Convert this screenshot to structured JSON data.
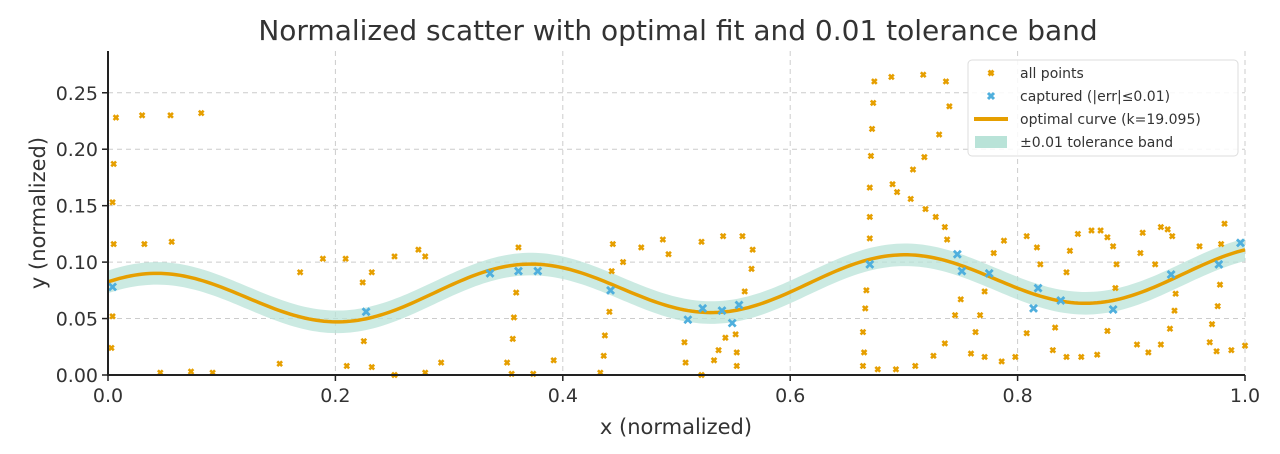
{
  "chart_data": {
    "type": "scatter",
    "title": "Normalized scatter with optimal fit and 0.01 tolerance band",
    "xlabel": "x (normalized)",
    "ylabel": "y (normalized)",
    "xlim": [
      0,
      1
    ],
    "ylim": [
      0,
      0.287
    ],
    "xticks": [
      0,
      0.2,
      0.4,
      0.6,
      0.8,
      1.0
    ],
    "xtick_labels": [
      "0.0",
      "0.2",
      "0.4",
      "0.6",
      "0.8",
      "1.0"
    ],
    "yticks": [
      0,
      0.05,
      0.1,
      0.15,
      0.2,
      0.25
    ],
    "ytick_labels": [
      "0.00",
      "0.05",
      "0.10",
      "0.15",
      "0.20",
      "0.25"
    ],
    "grid": true,
    "legend_position": "top-right",
    "legend": [
      {
        "label": "all points",
        "kind": "marker",
        "color": "#E69F00"
      },
      {
        "label": "captured (|err|≤0.01)",
        "kind": "marker",
        "color": "#4FAFDD"
      },
      {
        "label": "optimal curve (k=19.095)",
        "kind": "line",
        "color": "#E69F00"
      },
      {
        "label": "±0.01 tolerance band",
        "kind": "band",
        "color": "#B9E3D8"
      }
    ],
    "curve": {
      "k": 19.095,
      "intercept": 0.0655,
      "slope": 0.025,
      "amplitude": 0.0235,
      "phase": 0.807,
      "tolerance": 0.01
    },
    "colors": {
      "all": "#E69F00",
      "captured": "#4FAFDD",
      "curve": "#E69F00",
      "band": "#B9E3D8"
    },
    "all_points": [
      [
        0.007,
        0.228
      ],
      [
        0.03,
        0.23
      ],
      [
        0.055,
        0.23
      ],
      [
        0.082,
        0.232
      ],
      [
        0.005,
        0.187
      ],
      [
        0.004,
        0.153
      ],
      [
        0.005,
        0.116
      ],
      [
        0.032,
        0.116
      ],
      [
        0.056,
        0.118
      ],
      [
        0.004,
        0.052
      ],
      [
        0.003,
        0.024
      ],
      [
        0.046,
        0.002
      ],
      [
        0.073,
        0.003
      ],
      [
        0.092,
        0.002
      ],
      [
        0.151,
        0.01
      ],
      [
        0.169,
        0.091
      ],
      [
        0.189,
        0.103
      ],
      [
        0.209,
        0.103
      ],
      [
        0.21,
        0.008
      ],
      [
        0.224,
        0.082
      ],
      [
        0.232,
        0.091
      ],
      [
        0.225,
        0.03
      ],
      [
        0.232,
        0.007
      ],
      [
        0.252,
        0.105
      ],
      [
        0.252,
        0.0
      ],
      [
        0.273,
        0.111
      ],
      [
        0.279,
        0.105
      ],
      [
        0.279,
        0.002
      ],
      [
        0.293,
        0.011
      ],
      [
        0.361,
        0.113
      ],
      [
        0.359,
        0.073
      ],
      [
        0.357,
        0.051
      ],
      [
        0.356,
        0.032
      ],
      [
        0.351,
        0.011
      ],
      [
        0.355,
        0.001
      ],
      [
        0.374,
        0.001
      ],
      [
        0.392,
        0.013
      ],
      [
        0.444,
        0.116
      ],
      [
        0.453,
        0.1
      ],
      [
        0.443,
        0.092
      ],
      [
        0.441,
        0.056
      ],
      [
        0.437,
        0.035
      ],
      [
        0.436,
        0.017
      ],
      [
        0.433,
        0.002
      ],
      [
        0.469,
        0.113
      ],
      [
        0.488,
        0.12
      ],
      [
        0.493,
        0.107
      ],
      [
        0.507,
        0.029
      ],
      [
        0.508,
        0.011
      ],
      [
        0.522,
        0.0
      ],
      [
        0.522,
        0.118
      ],
      [
        0.541,
        0.123
      ],
      [
        0.558,
        0.123
      ],
      [
        0.567,
        0.111
      ],
      [
        0.566,
        0.094
      ],
      [
        0.56,
        0.074
      ],
      [
        0.543,
        0.033
      ],
      [
        0.552,
        0.036
      ],
      [
        0.537,
        0.022
      ],
      [
        0.533,
        0.013
      ],
      [
        0.553,
        0.02
      ],
      [
        0.553,
        0.008
      ],
      [
        0.674,
        0.26
      ],
      [
        0.689,
        0.264
      ],
      [
        0.717,
        0.266
      ],
      [
        0.737,
        0.26
      ],
      [
        0.673,
        0.241
      ],
      [
        0.74,
        0.238
      ],
      [
        0.672,
        0.218
      ],
      [
        0.731,
        0.213
      ],
      [
        0.671,
        0.194
      ],
      [
        0.718,
        0.193
      ],
      [
        0.708,
        0.182
      ],
      [
        0.67,
        0.166
      ],
      [
        0.69,
        0.169
      ],
      [
        0.694,
        0.162
      ],
      [
        0.706,
        0.156
      ],
      [
        0.67,
        0.14
      ],
      [
        0.719,
        0.147
      ],
      [
        0.728,
        0.14
      ],
      [
        0.736,
        0.131
      ],
      [
        0.67,
        0.121
      ],
      [
        0.738,
        0.12
      ],
      [
        0.788,
        0.119
      ],
      [
        0.779,
        0.108
      ],
      [
        0.667,
        0.075
      ],
      [
        0.666,
        0.059
      ],
      [
        0.664,
        0.038
      ],
      [
        0.665,
        0.02
      ],
      [
        0.664,
        0.008
      ],
      [
        0.677,
        0.005
      ],
      [
        0.693,
        0.005
      ],
      [
        0.71,
        0.008
      ],
      [
        0.726,
        0.017
      ],
      [
        0.736,
        0.028
      ],
      [
        0.745,
        0.053
      ],
      [
        0.75,
        0.067
      ],
      [
        0.767,
        0.053
      ],
      [
        0.771,
        0.074
      ],
      [
        0.763,
        0.038
      ],
      [
        0.759,
        0.019
      ],
      [
        0.771,
        0.016
      ],
      [
        0.786,
        0.012
      ],
      [
        0.798,
        0.016
      ],
      [
        0.808,
        0.123
      ],
      [
        0.817,
        0.113
      ],
      [
        0.82,
        0.098
      ],
      [
        0.808,
        0.037
      ],
      [
        0.843,
        0.091
      ],
      [
        0.846,
        0.11
      ],
      [
        0.853,
        0.125
      ],
      [
        0.865,
        0.128
      ],
      [
        0.873,
        0.128
      ],
      [
        0.879,
        0.122
      ],
      [
        0.884,
        0.114
      ],
      [
        0.887,
        0.098
      ],
      [
        0.886,
        0.077
      ],
      [
        0.879,
        0.039
      ],
      [
        0.833,
        0.042
      ],
      [
        0.831,
        0.022
      ],
      [
        0.843,
        0.016
      ],
      [
        0.856,
        0.016
      ],
      [
        0.87,
        0.018
      ],
      [
        0.905,
        0.027
      ],
      [
        0.915,
        0.02
      ],
      [
        0.926,
        0.027
      ],
      [
        0.934,
        0.041
      ],
      [
        0.938,
        0.057
      ],
      [
        0.939,
        0.072
      ],
      [
        0.921,
        0.098
      ],
      [
        0.908,
        0.108
      ],
      [
        0.91,
        0.126
      ],
      [
        0.926,
        0.131
      ],
      [
        0.932,
        0.129
      ],
      [
        0.936,
        0.123
      ],
      [
        0.96,
        0.114
      ],
      [
        0.979,
        0.116
      ],
      [
        0.982,
        0.134
      ],
      [
        0.978,
        0.08
      ],
      [
        0.976,
        0.061
      ],
      [
        0.971,
        0.045
      ],
      [
        0.969,
        0.029
      ],
      [
        0.975,
        0.021
      ],
      [
        0.988,
        0.022
      ],
      [
        1.0,
        0.026
      ]
    ],
    "captured_points": [
      [
        0.004,
        0.078
      ],
      [
        0.227,
        0.056
      ],
      [
        0.336,
        0.09
      ],
      [
        0.361,
        0.092
      ],
      [
        0.378,
        0.092
      ],
      [
        0.442,
        0.075
      ],
      [
        0.51,
        0.049
      ],
      [
        0.523,
        0.059
      ],
      [
        0.54,
        0.057
      ],
      [
        0.549,
        0.046
      ],
      [
        0.555,
        0.062
      ],
      [
        0.67,
        0.098
      ],
      [
        0.747,
        0.107
      ],
      [
        0.751,
        0.092
      ],
      [
        0.775,
        0.09
      ],
      [
        0.818,
        0.077
      ],
      [
        0.814,
        0.059
      ],
      [
        0.838,
        0.066
      ],
      [
        0.884,
        0.058
      ],
      [
        0.935,
        0.089
      ],
      [
        0.977,
        0.098
      ],
      [
        0.996,
        0.117
      ]
    ]
  }
}
